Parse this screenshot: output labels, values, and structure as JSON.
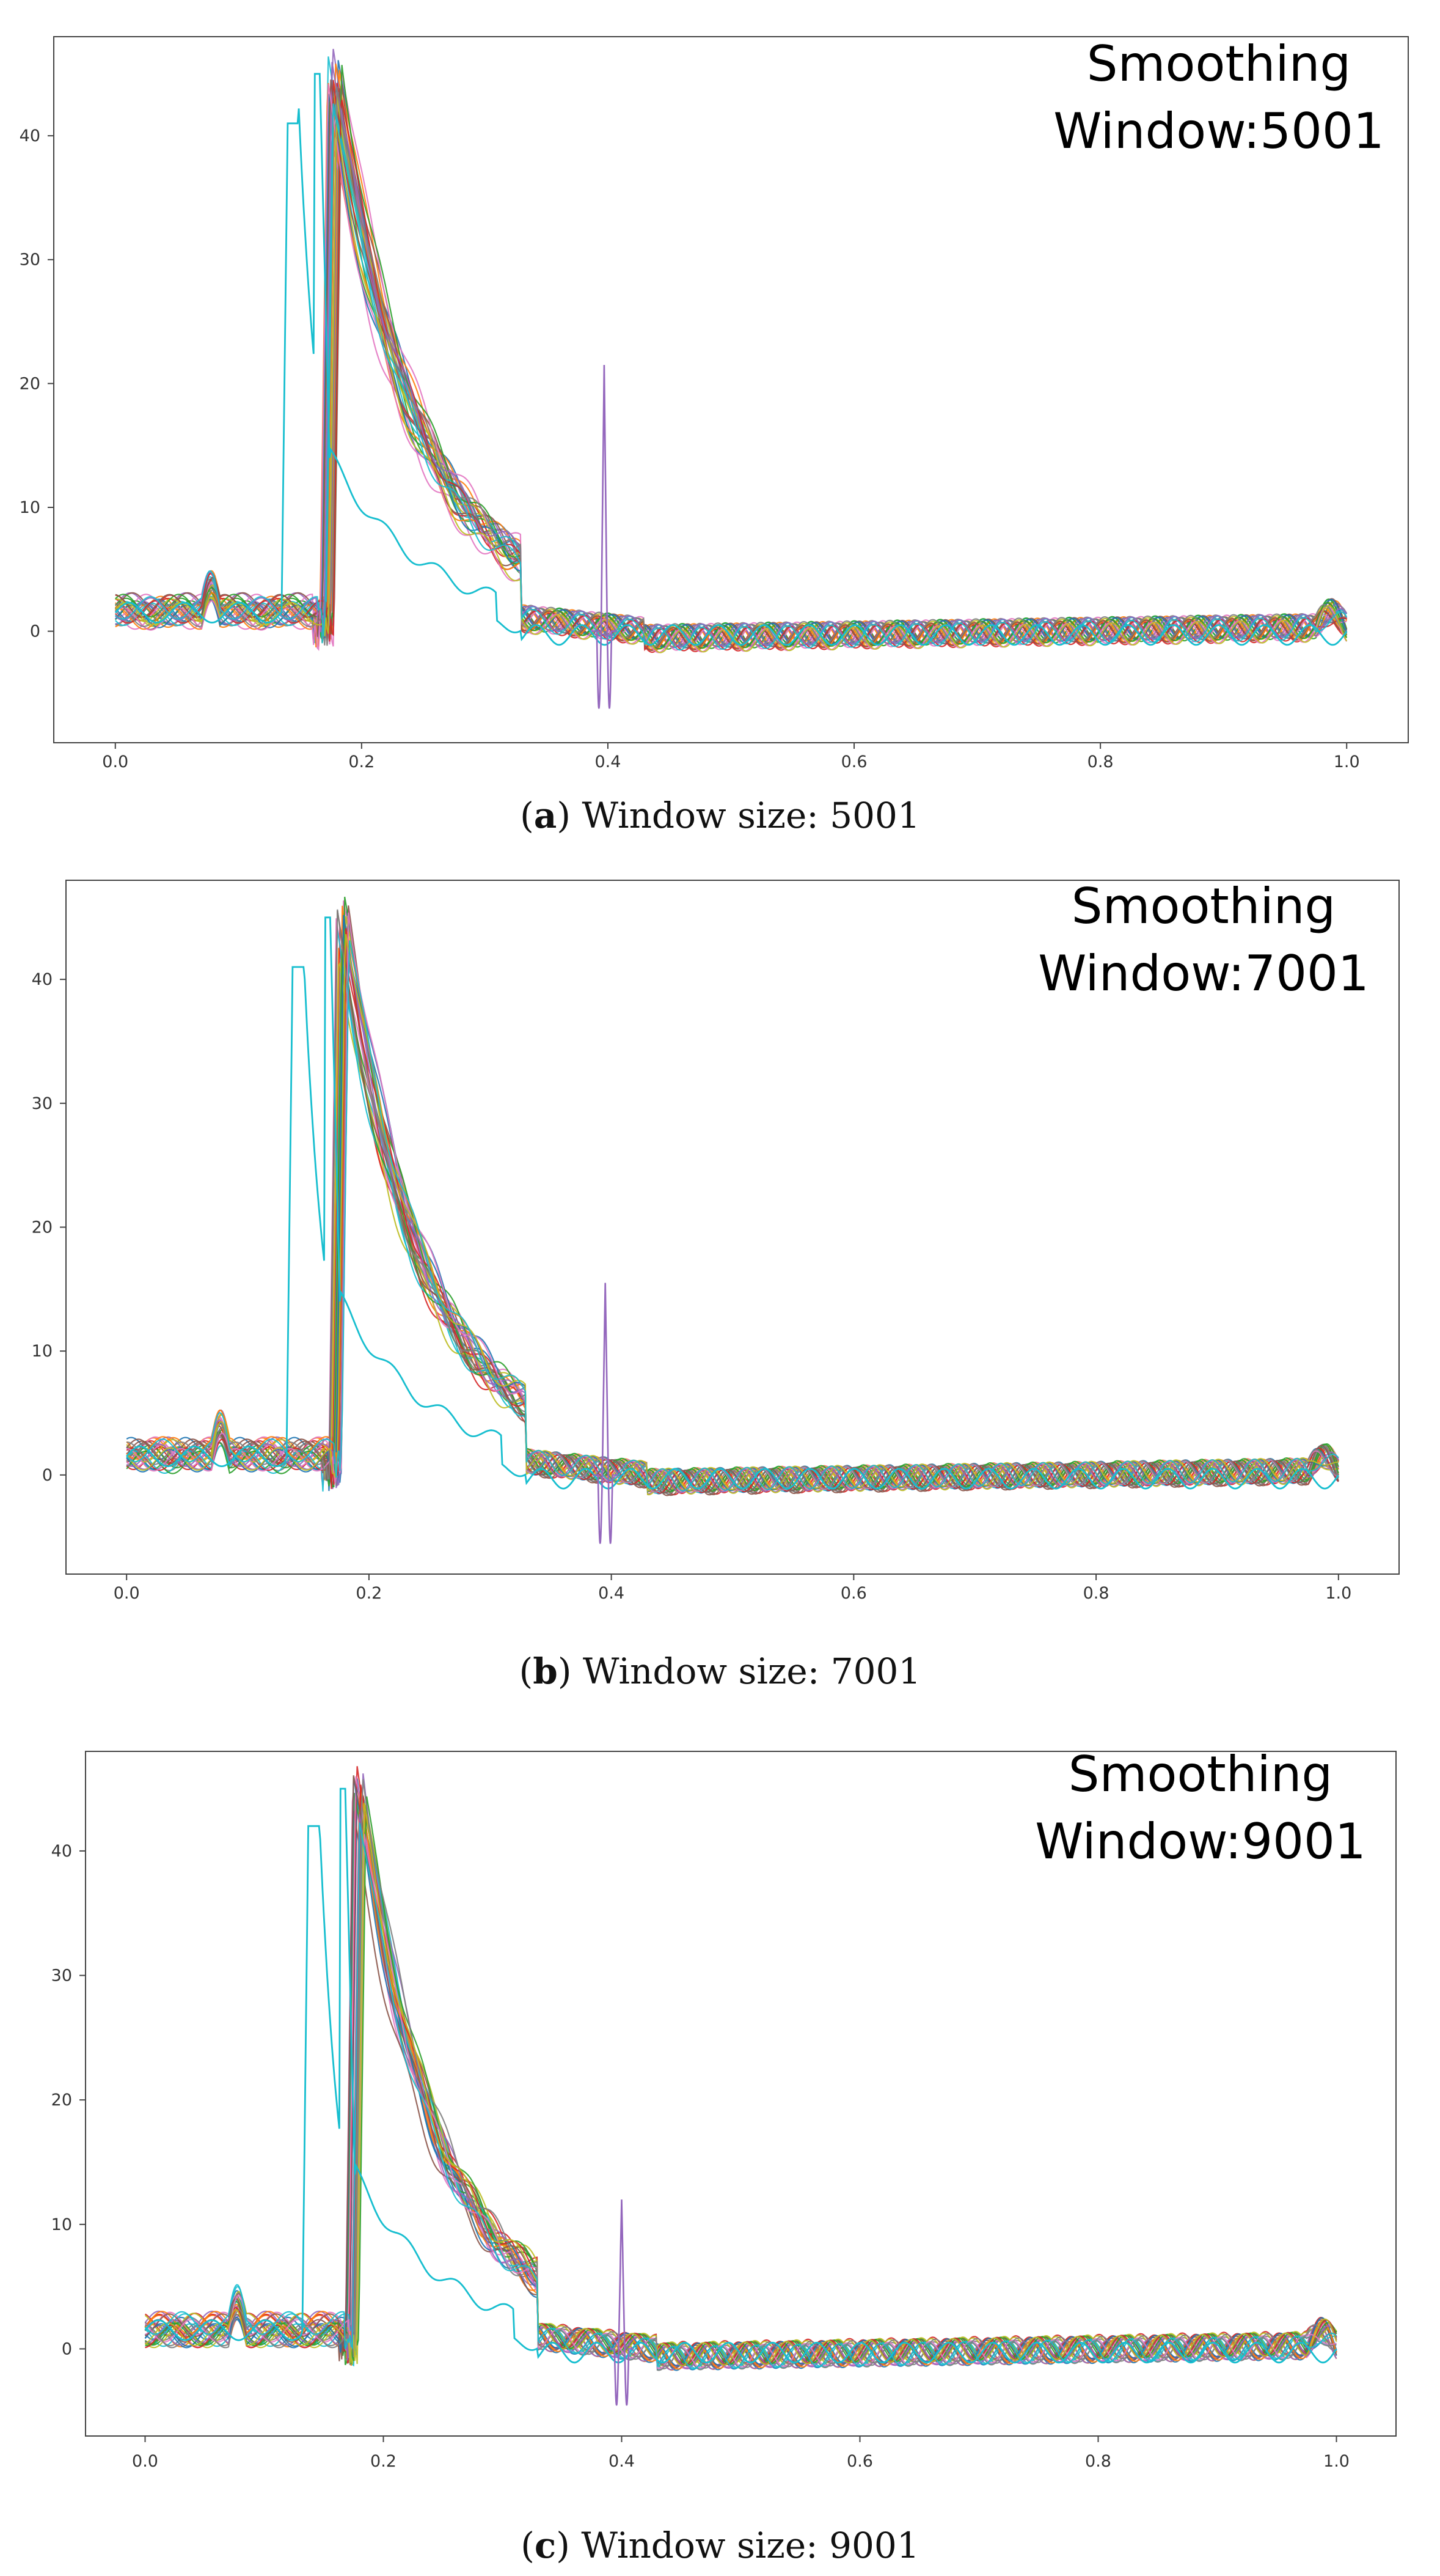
{
  "chart_data": [
    {
      "type": "line",
      "panel_label": "a",
      "caption": "Window size: 5001",
      "annotation_line1": "Smoothing",
      "annotation_line2": "Window:5001",
      "xlim": [
        -0.05,
        1.05
      ],
      "ylim": [
        -9,
        48
      ],
      "xticks": [
        "0.0",
        "0.2",
        "0.4",
        "0.6",
        "0.8",
        "1.0"
      ],
      "yticks": [
        "0",
        "10",
        "20",
        "30",
        "40"
      ],
      "series_count": 30,
      "main_peak": {
        "x": 0.178,
        "y": 45
      },
      "early_peak": {
        "x": 0.143,
        "y": 41
      },
      "early_peak2": {
        "x": 0.166,
        "y": 45
      },
      "purple_spike": {
        "x": 0.397,
        "y_high": 21.5,
        "y_low": -6.2
      },
      "colors": [
        "#1f77b4",
        "#ff7f0e",
        "#2ca02c",
        "#d62728",
        "#9467bd",
        "#8c564b",
        "#e377c2",
        "#7f7f7f",
        "#bcbd22",
        "#17becf"
      ],
      "outlier_color": "#17becf",
      "spike_color": "#9467bd"
    },
    {
      "type": "line",
      "panel_label": "b",
      "caption": "Window size: 7001",
      "annotation_line1": "Smoothing",
      "annotation_line2": "Window:7001",
      "xlim": [
        -0.05,
        1.05
      ],
      "ylim": [
        -8,
        48
      ],
      "xticks": [
        "0.0",
        "0.2",
        "0.4",
        "0.6",
        "0.8",
        "1.0"
      ],
      "yticks": [
        "0",
        "10",
        "20",
        "30",
        "40"
      ],
      "series_count": 30,
      "main_peak": {
        "x": 0.178,
        "y": 45
      },
      "early_peak": {
        "x": 0.14,
        "y": 41
      },
      "early_peak2": {
        "x": 0.168,
        "y": 45
      },
      "purple_spike": {
        "x": 0.395,
        "y_high": 15.5,
        "y_low": -5.5
      },
      "colors": [
        "#1f77b4",
        "#ff7f0e",
        "#2ca02c",
        "#d62728",
        "#9467bd",
        "#8c564b",
        "#e377c2",
        "#7f7f7f",
        "#bcbd22",
        "#17becf"
      ],
      "outlier_color": "#17becf",
      "spike_color": "#9467bd"
    },
    {
      "type": "line",
      "panel_label": "c",
      "caption": "Window size: 9001",
      "annotation_line1": "Smoothing",
      "annotation_line2": "Window:9001",
      "xlim": [
        -0.05,
        1.05
      ],
      "ylim": [
        -7,
        48
      ],
      "xticks": [
        "0.0",
        "0.2",
        "0.4",
        "0.6",
        "0.8",
        "1.0"
      ],
      "yticks": [
        "0",
        "10",
        "20",
        "30",
        "40"
      ],
      "series_count": 30,
      "main_peak": {
        "x": 0.18,
        "y": 46
      },
      "early_peak": {
        "x": 0.14,
        "y": 42
      },
      "early_peak2": {
        "x": 0.168,
        "y": 45
      },
      "purple_spike": {
        "x": 0.4,
        "y_high": 12,
        "y_low": -4.5
      },
      "colors": [
        "#1f77b4",
        "#ff7f0e",
        "#2ca02c",
        "#d62728",
        "#9467bd",
        "#8c564b",
        "#e377c2",
        "#7f7f7f",
        "#bcbd22",
        "#17becf"
      ],
      "outlier_color": "#17becf",
      "spike_color": "#9467bd"
    }
  ]
}
